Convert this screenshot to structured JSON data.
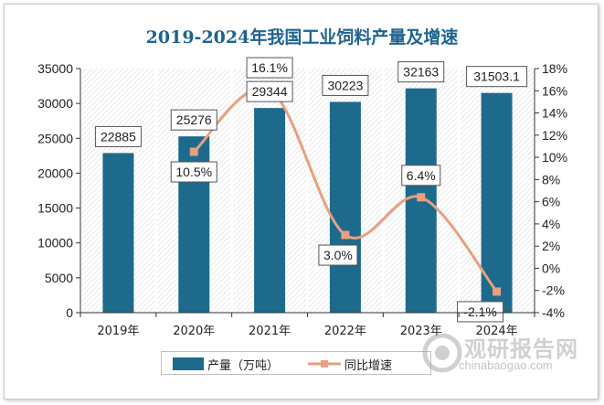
{
  "chart_data": {
    "type": "bar",
    "title": "2019-2024年我国工业饲料产量及增速",
    "categories": [
      "2019年",
      "2020年",
      "2021年",
      "2022年",
      "2023年",
      "2024年"
    ],
    "series": [
      {
        "name": "产量（万吨）",
        "type": "bar",
        "axis": "left",
        "values": [
          22885,
          25276,
          29344,
          30223,
          32163,
          31503.1
        ],
        "labels": [
          "22885",
          "25276",
          "29344",
          "30223",
          "32163",
          "31503.1"
        ]
      },
      {
        "name": "同比增速",
        "type": "line",
        "axis": "right",
        "values": [
          null,
          10.5,
          16.1,
          3.0,
          6.4,
          -2.1
        ],
        "labels": [
          "",
          "10.5%",
          "16.1%",
          "3.0%",
          "6.4%",
          "-2.1%"
        ]
      }
    ],
    "y_left": {
      "range": [
        0,
        35000
      ],
      "ticks": [
        "0",
        "5000",
        "10000",
        "15000",
        "20000",
        "25000",
        "30000",
        "35000"
      ]
    },
    "y_right": {
      "range": [
        -4,
        18
      ],
      "ticks": [
        "-4%",
        "-2%",
        "0%",
        "2%",
        "4%",
        "6%",
        "8%",
        "10%",
        "12%",
        "14%",
        "16%",
        "18%"
      ]
    },
    "colors": {
      "bar": "#1e6a8c",
      "line": "#e9a07f",
      "title": "#1f6391"
    },
    "legend_position": "bottom"
  },
  "watermark": {
    "brand": "观研报告网",
    "site": "chinabaogao.com"
  }
}
